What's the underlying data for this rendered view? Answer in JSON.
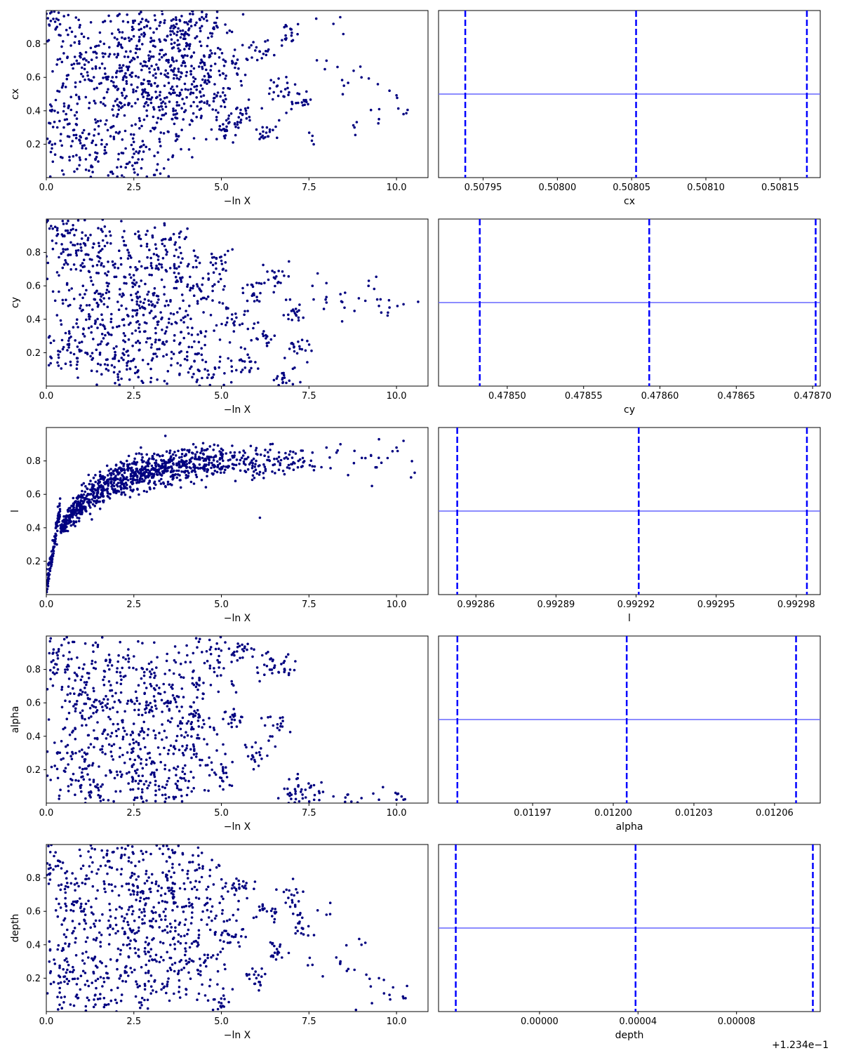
{
  "colors": {
    "points": "#000080",
    "quantile_lines": "#0000ff",
    "marginal_line": "#6666ff",
    "axes": "#000000",
    "background": "#ffffff"
  },
  "chart_data": [
    {
      "type": "scatter",
      "xlabel": "−ln X",
      "ylabel": "cx",
      "xlim": [
        0,
        10.9
      ],
      "ylim": [
        0,
        1
      ],
      "x_ticks": [
        0.0,
        2.5,
        5.0,
        7.5,
        10.0
      ],
      "x_tick_labels": [
        "0.0",
        "2.5",
        "5.0",
        "7.5",
        "10.0"
      ],
      "y_ticks": [
        0.2,
        0.4,
        0.6,
        0.8
      ],
      "y_tick_labels": [
        "0.2",
        "0.4",
        "0.6",
        "0.8"
      ],
      "points": [
        [
          0.2,
          0.95
        ],
        [
          0.5,
          0.3
        ],
        [
          1.0,
          0.62
        ],
        [
          1.4,
          0.15
        ],
        [
          1.8,
          0.78
        ],
        [
          2.1,
          0.45
        ],
        [
          2.5,
          0.05
        ],
        [
          2.8,
          0.9
        ],
        [
          3.0,
          0.55
        ],
        [
          3.3,
          0.72
        ],
        [
          3.6,
          0.35
        ],
        [
          3.9,
          0.88
        ],
        [
          4.2,
          0.6
        ],
        [
          4.5,
          0.95
        ],
        [
          4.8,
          0.5
        ],
        [
          5.1,
          0.28
        ],
        [
          5.4,
          0.68
        ],
        [
          5.7,
          0.4
        ],
        [
          6.0,
          0.78
        ],
        [
          6.3,
          0.3
        ],
        [
          6.6,
          0.55
        ],
        [
          7.0,
          0.85
        ],
        [
          7.3,
          0.45
        ],
        [
          7.6,
          0.25
        ],
        [
          8.0,
          0.7
        ],
        [
          8.2,
          0.92
        ],
        [
          8.5,
          0.55
        ],
        [
          8.8,
          0.3
        ],
        [
          9.0,
          0.6
        ],
        [
          9.5,
          0.35
        ],
        [
          9.8,
          0.52
        ],
        [
          10.2,
          0.38
        ]
      ]
    },
    {
      "type": "line",
      "xlabel": "cx",
      "x_ticks": [
        0.50795,
        0.508,
        0.50805,
        0.5081,
        0.50815
      ],
      "x_tick_labels": [
        "0.50795",
        "0.50800",
        "0.50805",
        "0.50810",
        "0.50815"
      ],
      "xlim": [
        0.50792,
        0.508177
      ],
      "quantiles": [
        0.507938,
        0.508053,
        0.508168
      ],
      "marginal_level": 0.5
    },
    {
      "type": "scatter",
      "xlabel": "−ln X",
      "ylabel": "cy",
      "xlim": [
        0,
        10.9
      ],
      "ylim": [
        0,
        1
      ],
      "x_ticks": [
        0.0,
        2.5,
        5.0,
        7.5,
        10.0
      ],
      "x_tick_labels": [
        "0.0",
        "2.5",
        "5.0",
        "7.5",
        "10.0"
      ],
      "y_ticks": [
        0.2,
        0.4,
        0.6,
        0.8
      ],
      "y_tick_labels": [
        "0.2",
        "0.4",
        "0.6",
        "0.8"
      ],
      "points": [
        [
          0.3,
          0.9
        ],
        [
          0.7,
          0.2
        ],
        [
          1.1,
          0.55
        ],
        [
          1.5,
          0.8
        ],
        [
          1.9,
          0.35
        ],
        [
          2.3,
          0.1
        ],
        [
          2.6,
          0.7
        ],
        [
          3.0,
          0.45
        ],
        [
          3.4,
          0.88
        ],
        [
          3.8,
          0.25
        ],
        [
          4.2,
          0.6
        ],
        [
          4.6,
          0.05
        ],
        [
          5.0,
          0.75
        ],
        [
          5.3,
          0.4
        ],
        [
          5.6,
          0.15
        ],
        [
          5.9,
          0.55
        ],
        [
          6.2,
          0.3
        ],
        [
          6.5,
          0.65
        ],
        [
          6.8,
          0.05
        ],
        [
          7.0,
          0.45
        ],
        [
          7.3,
          0.22
        ],
        [
          7.6,
          0.6
        ],
        [
          8.0,
          0.5
        ],
        [
          8.4,
          0.55
        ],
        [
          8.8,
          0.45
        ],
        [
          9.2,
          0.6
        ],
        [
          9.5,
          0.48
        ],
        [
          9.8,
          0.47
        ],
        [
          10.2,
          0.49
        ]
      ]
    },
    {
      "type": "line",
      "xlabel": "cy",
      "x_ticks": [
        0.4785,
        0.47855,
        0.4786,
        0.47865,
        0.4787
      ],
      "x_tick_labels": [
        "0.47850",
        "0.47855",
        "0.47860",
        "0.47865",
        "0.47870"
      ],
      "xlim": [
        0.478455,
        0.478705
      ],
      "quantiles": [
        0.478482,
        0.478593,
        0.478702
      ],
      "marginal_level": 0.5
    },
    {
      "type": "scatter",
      "xlabel": "−ln X",
      "ylabel": "l",
      "xlim": [
        0,
        10.9
      ],
      "ylim": [
        0,
        1
      ],
      "x_ticks": [
        0.0,
        2.5,
        5.0,
        7.5,
        10.0
      ],
      "x_tick_labels": [
        "0.0",
        "2.5",
        "5.0",
        "7.5",
        "10.0"
      ],
      "y_ticks": [
        0.2,
        0.4,
        0.6,
        0.8
      ],
      "y_tick_labels": [
        "0.2",
        "0.4",
        "0.6",
        "0.8"
      ],
      "points": [
        [
          0.05,
          0.05
        ],
        [
          0.15,
          0.18
        ],
        [
          0.3,
          0.3
        ],
        [
          0.5,
          0.4
        ],
        [
          0.7,
          0.5
        ],
        [
          1.0,
          0.58
        ],
        [
          1.3,
          0.45
        ],
        [
          1.6,
          0.7
        ],
        [
          2.0,
          0.62
        ],
        [
          2.3,
          0.8
        ],
        [
          2.7,
          0.88
        ],
        [
          3.0,
          0.72
        ],
        [
          3.4,
          0.95
        ],
        [
          3.8,
          0.82
        ],
        [
          4.2,
          0.9
        ],
        [
          4.6,
          0.75
        ],
        [
          5.0,
          0.85
        ],
        [
          5.4,
          0.68
        ],
        [
          5.8,
          0.78
        ],
        [
          6.1,
          0.46
        ],
        [
          6.4,
          0.9
        ],
        [
          6.8,
          0.72
        ],
        [
          7.2,
          0.8
        ],
        [
          7.6,
          0.85
        ],
        [
          8.0,
          0.88
        ],
        [
          8.4,
          0.9
        ],
        [
          8.8,
          0.86
        ],
        [
          9.3,
          0.65
        ],
        [
          9.5,
          0.93
        ],
        [
          10.0,
          0.88
        ],
        [
          10.2,
          0.92
        ]
      ]
    },
    {
      "type": "line",
      "xlabel": "l",
      "x_ticks": [
        0.99286,
        0.99289,
        0.99292,
        0.99295,
        0.99298
      ],
      "x_tick_labels": [
        "0.99286",
        "0.99289",
        "0.99292",
        "0.99295",
        "0.99298"
      ],
      "xlim": [
        0.992846,
        0.992989
      ],
      "quantiles": [
        0.992853,
        0.992921,
        0.992984
      ],
      "marginal_level": 0.5
    },
    {
      "type": "scatter",
      "xlabel": "−ln X",
      "ylabel": "alpha",
      "xlim": [
        0,
        10.9
      ],
      "ylim": [
        0,
        1
      ],
      "x_ticks": [
        0.0,
        2.5,
        5.0,
        7.5,
        10.0
      ],
      "x_tick_labels": [
        "0.0",
        "2.5",
        "5.0",
        "7.5",
        "10.0"
      ],
      "y_ticks": [
        0.2,
        0.4,
        0.6,
        0.8
      ],
      "y_tick_labels": [
        "0.2",
        "0.4",
        "0.6",
        "0.8"
      ],
      "points": [
        [
          0.2,
          0.9
        ],
        [
          0.6,
          0.3
        ],
        [
          1.0,
          0.65
        ],
        [
          1.4,
          0.1
        ],
        [
          1.8,
          0.8
        ],
        [
          2.2,
          0.45
        ],
        [
          2.6,
          0.2
        ],
        [
          3.0,
          0.7
        ],
        [
          3.4,
          0.05
        ],
        [
          3.8,
          0.55
        ],
        [
          4.2,
          0.35
        ],
        [
          4.6,
          0.85
        ],
        [
          5.0,
          0.15
        ],
        [
          5.3,
          0.5
        ],
        [
          5.6,
          0.92
        ],
        [
          6.0,
          0.3
        ],
        [
          6.3,
          0.82
        ],
        [
          6.6,
          0.45
        ],
        [
          6.8,
          0.8
        ],
        [
          7.0,
          0.05
        ],
        [
          7.4,
          0.08
        ],
        [
          7.8,
          0.06
        ],
        [
          8.2,
          0.04
        ],
        [
          8.6,
          0.05
        ],
        [
          9.0,
          0.03
        ],
        [
          9.5,
          0.02
        ],
        [
          10.0,
          0.02
        ],
        [
          10.2,
          0.02
        ]
      ]
    },
    {
      "type": "line",
      "xlabel": "alpha",
      "x_ticks": [
        0.01197,
        0.012,
        0.01203,
        0.01206
      ],
      "x_tick_labels": [
        "0.01197",
        "0.01200",
        "0.01203",
        "0.01206"
      ],
      "xlim": [
        0.011935,
        0.012077
      ],
      "quantiles": [
        0.011942,
        0.012005,
        0.012068
      ],
      "marginal_level": 0.5
    },
    {
      "type": "scatter",
      "xlabel": "−ln X",
      "ylabel": "depth",
      "xlim": [
        0,
        10.9
      ],
      "ylim": [
        0,
        1
      ],
      "x_ticks": [
        0.0,
        2.5,
        5.0,
        7.5,
        10.0
      ],
      "x_tick_labels": [
        "0.0",
        "2.5",
        "5.0",
        "7.5",
        "10.0"
      ],
      "y_ticks": [
        0.2,
        0.4,
        0.6,
        0.8
      ],
      "y_tick_labels": [
        "0.2",
        "0.4",
        "0.6",
        "0.8"
      ],
      "points": [
        [
          0.2,
          0.85
        ],
        [
          0.6,
          0.25
        ],
        [
          1.0,
          0.6
        ],
        [
          1.4,
          0.1
        ],
        [
          1.8,
          0.9
        ],
        [
          2.2,
          0.4
        ],
        [
          2.6,
          0.7
        ],
        [
          3.0,
          0.15
        ],
        [
          3.4,
          0.55
        ],
        [
          3.8,
          0.88
        ],
        [
          4.2,
          0.3
        ],
        [
          4.6,
          0.65
        ],
        [
          5.0,
          0.05
        ],
        [
          5.3,
          0.45
        ],
        [
          5.6,
          0.75
        ],
        [
          6.0,
          0.2
        ],
        [
          6.3,
          0.6
        ],
        [
          6.6,
          0.35
        ],
        [
          7.0,
          0.7
        ],
        [
          7.3,
          0.5
        ],
        [
          7.6,
          0.28
        ],
        [
          8.0,
          0.58
        ],
        [
          8.4,
          0.3
        ],
        [
          8.8,
          0.25
        ],
        [
          9.0,
          0.4
        ],
        [
          9.3,
          0.05
        ],
        [
          9.5,
          0.2
        ],
        [
          9.8,
          0.1
        ],
        [
          10.2,
          0.08
        ]
      ]
    },
    {
      "type": "line",
      "xlabel": "depth",
      "x_ticks": [
        0.0,
        4e-05,
        8e-05
      ],
      "x_tick_labels": [
        "0.00000",
        "0.00004",
        "0.00008"
      ],
      "offset_label": "+1.234e−1",
      "xlim": [
        -4.1e-05,
        0.000114
      ],
      "quantiles": [
        -3.4e-05,
        3.9e-05,
        0.000111
      ],
      "marginal_level": 0.5
    }
  ]
}
